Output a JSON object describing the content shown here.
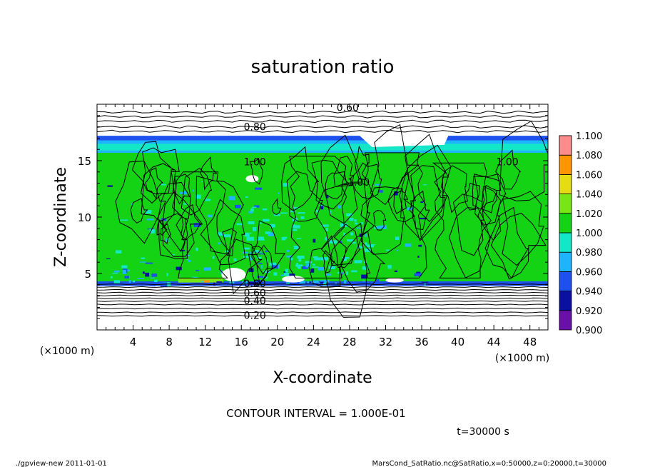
{
  "chart_data": {
    "type": "heatmap",
    "title": "saturation ratio",
    "xlabel": "X-coordinate",
    "ylabel": "Z-coordinate",
    "x_unit_left": "(×1000 m)",
    "x_unit_right": "(×1000 m)",
    "xlim": [
      0,
      50
    ],
    "ylim": [
      0,
      20
    ],
    "x_ticks": [
      4,
      8,
      12,
      16,
      20,
      24,
      28,
      32,
      36,
      40,
      44,
      48
    ],
    "y_ticks": [
      5,
      10,
      15
    ],
    "contour_interval_text": "CONTOUR INTERVAL = 1.000E-01",
    "time_text": "t=30000 s",
    "colorbar": {
      "levels": [
        0.9,
        0.92,
        0.94,
        0.96,
        0.98,
        1.0,
        1.02,
        1.04,
        1.06,
        1.08,
        1.1
      ],
      "labels": [
        "0.900",
        "0.920",
        "0.940",
        "0.960",
        "0.980",
        "1.000",
        "1.020",
        "1.040",
        "1.060",
        "1.080",
        "1.100"
      ],
      "colors": [
        "#6a0fa8",
        "#0a10a0",
        "#1e50f0",
        "#1eb4ff",
        "#14e6c8",
        "#14d214",
        "#78e614",
        "#e6dc14",
        "#ff9600",
        "#ff3c1e",
        "#ff8c8c"
      ]
    },
    "contour_labels": [
      {
        "value": "0.60",
        "x": 27.8,
        "z": 19.7
      },
      {
        "value": "0.80",
        "x": 17.5,
        "z": 18.0
      },
      {
        "value": "1.00",
        "x": 17.5,
        "z": 14.9
      },
      {
        "value": "1.00",
        "x": 29.0,
        "z": 13.1
      },
      {
        "value": "1.00",
        "x": 45.5,
        "z": 14.9
      },
      {
        "value": "0.80",
        "x": 17.5,
        "z": 4.1
      },
      {
        "value": "0.60",
        "x": 17.5,
        "z": 3.3
      },
      {
        "value": "0.40",
        "x": 17.5,
        "z": 2.6
      },
      {
        "value": "0.20",
        "x": 17.5,
        "z": 1.3
      }
    ],
    "grid": false,
    "legend": "colorbar-right"
  },
  "footer": {
    "left": "./gpview-new   2011-01-01",
    "right": "MarsCond_SatRatio.nc@SatRatio,x=0:50000,z=0:20000,t=30000"
  }
}
